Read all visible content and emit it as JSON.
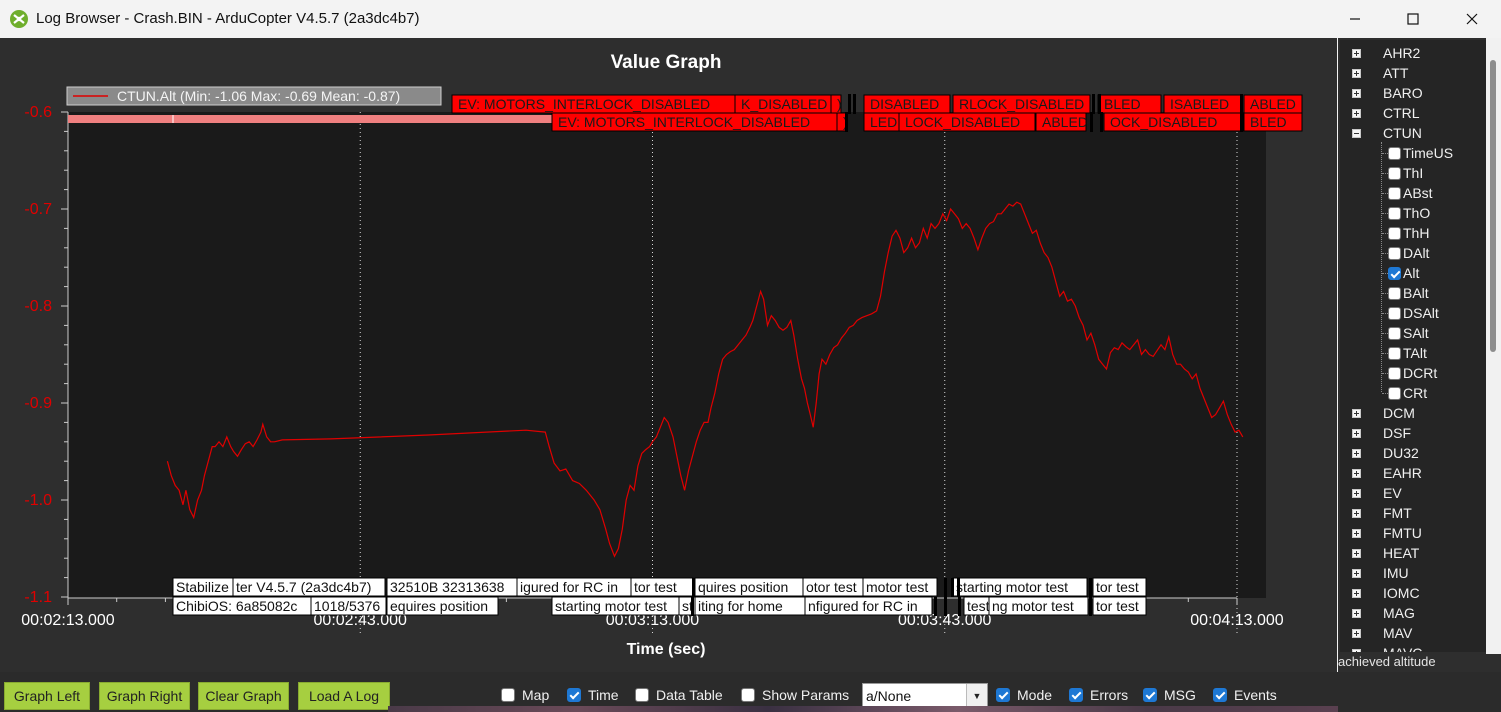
{
  "window": {
    "title": "Log Browser - Crash.BIN - ArduCopter V4.5.7 (2a3dc4b7)"
  },
  "chart_data": {
    "type": "line",
    "title": "Value Graph",
    "xlabel": "Time (sec)",
    "ylabel": "",
    "xlim": [
      133,
      253
    ],
    "ylim": [
      -1.1,
      -0.6
    ],
    "x_ticks": [
      {
        "v": 133,
        "label": "00:02:13.000"
      },
      {
        "v": 163,
        "label": "00:02:43.000"
      },
      {
        "v": 193,
        "label": "00:03:13.000"
      },
      {
        "v": 223,
        "label": "00:03:43.000"
      },
      {
        "v": 253,
        "label": "00:04:13.000"
      }
    ],
    "y_ticks": [
      {
        "v": -0.6,
        "label": "-0.6"
      },
      {
        "v": -0.7,
        "label": "-0.7"
      },
      {
        "v": -0.8,
        "label": "-0.8"
      },
      {
        "v": -0.9,
        "label": "-0.9"
      },
      {
        "v": -1.0,
        "label": "-1.0"
      },
      {
        "v": -1.1,
        "label": "-1.1"
      }
    ],
    "legend": {
      "label": "CTUN.Alt  (Min: -1.06 Max: -0.69 Mean: -0.87)",
      "placement": "top-left"
    },
    "grid": "x-dotted",
    "series": [
      {
        "name": "CTUN.Alt",
        "color": "#e00000",
        "points": [
          [
            143.2,
            -0.96
          ],
          [
            143.6,
            -0.975
          ],
          [
            144.0,
            -0.985
          ],
          [
            144.4,
            -0.99
          ],
          [
            144.8,
            -1.005
          ],
          [
            145.1,
            -0.99
          ],
          [
            145.5,
            -1.01
          ],
          [
            145.9,
            -1.018
          ],
          [
            146.3,
            -1.0
          ],
          [
            146.7,
            -0.99
          ],
          [
            147.0,
            -0.975
          ],
          [
            147.4,
            -0.96
          ],
          [
            147.8,
            -0.945
          ],
          [
            148.1,
            -0.945
          ],
          [
            148.5,
            -0.94
          ],
          [
            148.9,
            -0.945
          ],
          [
            149.3,
            -0.935
          ],
          [
            149.7,
            -0.945
          ],
          [
            150.0,
            -0.95
          ],
          [
            150.4,
            -0.955
          ],
          [
            150.8,
            -0.948
          ],
          [
            151.2,
            -0.942
          ],
          [
            151.6,
            -0.94
          ],
          [
            152.0,
            -0.945
          ],
          [
            152.4,
            -0.938
          ],
          [
            152.8,
            -0.93
          ],
          [
            153.0,
            -0.922
          ],
          [
            153.4,
            -0.935
          ],
          [
            153.8,
            -0.94
          ],
          [
            154.2,
            -0.94
          ],
          [
            155.0,
            -0.938
          ],
          [
            160.0,
            -0.937
          ],
          [
            170.0,
            -0.933
          ],
          [
            180.0,
            -0.928
          ],
          [
            182.0,
            -0.93
          ],
          [
            182.4,
            -0.945
          ],
          [
            182.9,
            -0.962
          ],
          [
            183.5,
            -0.97
          ],
          [
            184.1,
            -0.968
          ],
          [
            184.8,
            -0.98
          ],
          [
            185.5,
            -0.983
          ],
          [
            186.2,
            -0.99
          ],
          [
            187.0,
            -1.0
          ],
          [
            187.6,
            -1.01
          ],
          [
            188.2,
            -1.03
          ],
          [
            188.6,
            -1.045
          ],
          [
            189.1,
            -1.058
          ],
          [
            189.5,
            -1.05
          ],
          [
            189.9,
            -1.03
          ],
          [
            190.3,
            -1.0
          ],
          [
            190.7,
            -0.985
          ],
          [
            191.1,
            -0.99
          ],
          [
            191.5,
            -0.965
          ],
          [
            191.9,
            -0.952
          ],
          [
            192.3,
            -0.948
          ],
          [
            192.7,
            -0.945
          ],
          [
            193.0,
            -0.94
          ],
          [
            193.4,
            -0.935
          ],
          [
            193.8,
            -0.925
          ],
          [
            194.2,
            -0.915
          ],
          [
            194.6,
            -0.92
          ],
          [
            195.1,
            -0.935
          ],
          [
            195.5,
            -0.955
          ],
          [
            195.9,
            -0.975
          ],
          [
            196.3,
            -0.99
          ],
          [
            196.7,
            -0.97
          ],
          [
            197.1,
            -0.955
          ],
          [
            197.5,
            -0.94
          ],
          [
            197.9,
            -0.928
          ],
          [
            198.3,
            -0.92
          ],
          [
            198.7,
            -0.92
          ],
          [
            199.0,
            -0.905
          ],
          [
            199.4,
            -0.89
          ],
          [
            199.8,
            -0.87
          ],
          [
            200.2,
            -0.855
          ],
          [
            200.6,
            -0.85
          ],
          [
            201.0,
            -0.847
          ],
          [
            201.4,
            -0.845
          ],
          [
            201.8,
            -0.84
          ],
          [
            202.2,
            -0.835
          ],
          [
            202.6,
            -0.83
          ],
          [
            203.0,
            -0.822
          ],
          [
            203.3,
            -0.815
          ],
          [
            203.7,
            -0.8
          ],
          [
            204.1,
            -0.785
          ],
          [
            204.4,
            -0.793
          ],
          [
            204.8,
            -0.82
          ],
          [
            205.2,
            -0.81
          ],
          [
            205.6,
            -0.815
          ],
          [
            206.0,
            -0.822
          ],
          [
            206.4,
            -0.825
          ],
          [
            206.8,
            -0.822
          ],
          [
            207.2,
            -0.815
          ],
          [
            207.5,
            -0.83
          ],
          [
            207.9,
            -0.855
          ],
          [
            208.3,
            -0.875
          ],
          [
            208.6,
            -0.885
          ],
          [
            208.9,
            -0.9
          ],
          [
            209.2,
            -0.912
          ],
          [
            209.5,
            -0.925
          ],
          [
            209.8,
            -0.9
          ],
          [
            210.1,
            -0.87
          ],
          [
            210.4,
            -0.855
          ],
          [
            210.8,
            -0.86
          ],
          [
            211.2,
            -0.85
          ],
          [
            211.6,
            -0.843
          ],
          [
            212.0,
            -0.84
          ],
          [
            212.4,
            -0.833
          ],
          [
            212.8,
            -0.828
          ],
          [
            213.2,
            -0.822
          ],
          [
            213.6,
            -0.82
          ],
          [
            214.0,
            -0.815
          ],
          [
            214.5,
            -0.812
          ],
          [
            215.0,
            -0.81
          ],
          [
            215.5,
            -0.808
          ],
          [
            216.0,
            -0.805
          ],
          [
            216.4,
            -0.79
          ],
          [
            216.8,
            -0.765
          ],
          [
            217.2,
            -0.745
          ],
          [
            217.6,
            -0.728
          ],
          [
            218.0,
            -0.722
          ],
          [
            218.4,
            -0.73
          ],
          [
            218.8,
            -0.745
          ],
          [
            219.2,
            -0.74
          ],
          [
            219.6,
            -0.73
          ],
          [
            220.0,
            -0.74
          ],
          [
            220.4,
            -0.735
          ],
          [
            220.8,
            -0.72
          ],
          [
            221.2,
            -0.73
          ],
          [
            221.6,
            -0.715
          ],
          [
            222.0,
            -0.72
          ],
          [
            222.4,
            -0.715
          ],
          [
            222.8,
            -0.705
          ],
          [
            223.2,
            -0.712
          ],
          [
            223.6,
            -0.7
          ],
          [
            224.0,
            -0.705
          ],
          [
            224.4,
            -0.71
          ],
          [
            224.8,
            -0.72
          ],
          [
            225.2,
            -0.715
          ],
          [
            225.6,
            -0.72
          ],
          [
            226.0,
            -0.73
          ],
          [
            226.4,
            -0.742
          ],
          [
            226.8,
            -0.73
          ],
          [
            227.2,
            -0.72
          ],
          [
            227.6,
            -0.715
          ],
          [
            228.0,
            -0.713
          ],
          [
            228.4,
            -0.705
          ],
          [
            228.8,
            -0.705
          ],
          [
            229.2,
            -0.7
          ],
          [
            229.6,
            -0.695
          ],
          [
            230.0,
            -0.697
          ],
          [
            230.4,
            -0.693
          ],
          [
            230.8,
            -0.695
          ],
          [
            231.2,
            -0.705
          ],
          [
            231.6,
            -0.715
          ],
          [
            232.0,
            -0.725
          ],
          [
            232.4,
            -0.722
          ],
          [
            232.8,
            -0.735
          ],
          [
            233.2,
            -0.745
          ],
          [
            233.6,
            -0.75
          ],
          [
            234.0,
            -0.76
          ],
          [
            234.4,
            -0.775
          ],
          [
            234.8,
            -0.79
          ],
          [
            235.2,
            -0.785
          ],
          [
            235.6,
            -0.795
          ],
          [
            236.0,
            -0.793
          ],
          [
            236.4,
            -0.8
          ],
          [
            236.8,
            -0.812
          ],
          [
            237.2,
            -0.82
          ],
          [
            237.6,
            -0.835
          ],
          [
            238.0,
            -0.828
          ],
          [
            238.4,
            -0.84
          ],
          [
            238.8,
            -0.855
          ],
          [
            239.2,
            -0.86
          ],
          [
            239.6,
            -0.865
          ],
          [
            240.0,
            -0.848
          ],
          [
            240.4,
            -0.843
          ],
          [
            240.8,
            -0.845
          ],
          [
            241.2,
            -0.838
          ],
          [
            241.6,
            -0.842
          ],
          [
            242.0,
            -0.845
          ],
          [
            242.4,
            -0.84
          ],
          [
            242.8,
            -0.835
          ],
          [
            243.2,
            -0.85
          ],
          [
            243.6,
            -0.845
          ],
          [
            244.0,
            -0.85
          ],
          [
            244.4,
            -0.852
          ],
          [
            244.8,
            -0.846
          ],
          [
            245.2,
            -0.84
          ],
          [
            245.6,
            -0.845
          ],
          [
            246.0,
            -0.832
          ],
          [
            246.4,
            -0.85
          ],
          [
            246.8,
            -0.86
          ],
          [
            247.2,
            -0.86
          ],
          [
            247.6,
            -0.865
          ],
          [
            248.0,
            -0.868
          ],
          [
            248.4,
            -0.875
          ],
          [
            248.8,
            -0.87
          ],
          [
            249.2,
            -0.885
          ],
          [
            249.6,
            -0.895
          ],
          [
            250.0,
            -0.905
          ],
          [
            250.4,
            -0.915
          ],
          [
            250.8,
            -0.912
          ],
          [
            251.2,
            -0.905
          ],
          [
            251.6,
            -0.898
          ],
          [
            252.0,
            -0.912
          ],
          [
            252.4,
            -0.922
          ],
          [
            252.8,
            -0.93
          ],
          [
            253.2,
            -0.928
          ],
          [
            253.6,
            -0.935
          ]
        ]
      }
    ],
    "event_labels": [
      {
        "text": "EV: MOTORS_INTERLOCK_DISABLED",
        "lane": 1
      },
      {
        "text": "K_DISABLED",
        "lane": 1
      },
      {
        "text": ")",
        "lane": 1
      },
      {
        "text": "DISABLED",
        "lane": 1
      },
      {
        "text": "RLOCK_DISABLED",
        "lane": 1
      },
      {
        "text": "BLED",
        "lane": 1
      },
      {
        "text": "ISABLED",
        "lane": 1
      },
      {
        "text": "ABLED",
        "lane": 1
      },
      {
        "text": "EV: MOTORS_INTERLOCK_DISABLED",
        "lane": 2
      },
      {
        "text": ")",
        "lane": 2
      },
      {
        "text": "LED",
        "lane": 2
      },
      {
        "text": "LOCK_DISABLED",
        "lane": 2
      },
      {
        "text": "ABLED",
        "lane": 2
      },
      {
        "text": "OCK_DISABLED",
        "lane": 2
      },
      {
        "text": "BLED",
        "lane": 2
      }
    ],
    "msg_labels": [
      {
        "text": "Stabilize",
        "lane": 1
      },
      {
        "text": "ter V4.5.7 (2a3dc4b7)",
        "lane": 1
      },
      {
        "text": "32510B 32313638",
        "lane": 1
      },
      {
        "text": "igured for RC in",
        "lane": 1
      },
      {
        "text": "tor test",
        "lane": 1
      },
      {
        "text": "quires position",
        "lane": 1
      },
      {
        "text": "otor test",
        "lane": 1
      },
      {
        "text": "motor test",
        "lane": 1
      },
      {
        "text": "starting motor test",
        "lane": 1
      },
      {
        "text": "tor test",
        "lane": 1
      },
      {
        "text": "ChibiOS: 6a85082c",
        "lane": 2
      },
      {
        "text": "1018/5376",
        "lane": 2
      },
      {
        "text": "equires position",
        "lane": 2
      },
      {
        "text": "starting motor test",
        "lane": 2
      },
      {
        "text": "st",
        "lane": 2
      },
      {
        "text": "iting for home",
        "lane": 2
      },
      {
        "text": "nfigured for RC in",
        "lane": 2
      },
      {
        "text": "test",
        "lane": 2
      },
      {
        "text": "ng motor test",
        "lane": 2
      },
      {
        "text": "tor test",
        "lane": 2
      }
    ]
  },
  "tree": {
    "top_groups": [
      "AHR2",
      "ATT",
      "BARO",
      "CTRL"
    ],
    "expanded_group": "CTUN",
    "ctun_fields": [
      {
        "label": "TimeUS",
        "checked": false
      },
      {
        "label": "ThI",
        "checked": false
      },
      {
        "label": "ABst",
        "checked": false
      },
      {
        "label": "ThO",
        "checked": false
      },
      {
        "label": "ThH",
        "checked": false
      },
      {
        "label": "DAlt",
        "checked": false
      },
      {
        "label": "Alt",
        "checked": true
      },
      {
        "label": "BAlt",
        "checked": false
      },
      {
        "label": "DSAlt",
        "checked": false
      },
      {
        "label": "SAlt",
        "checked": false
      },
      {
        "label": "TAlt",
        "checked": false
      },
      {
        "label": "DCRt",
        "checked": false
      },
      {
        "label": "CRt",
        "checked": false
      }
    ],
    "bottom_groups": [
      "DCM",
      "DSF",
      "DU32",
      "EAHR",
      "EV",
      "FMT",
      "FMTU",
      "HEAT",
      "IMU",
      "IOMC",
      "MAG",
      "MAV",
      "MAVC"
    ]
  },
  "status_text": "achieved altitude",
  "buttons": {
    "graph_left": "Graph Left",
    "graph_right": "Graph Right",
    "clear_graph": "Clear Graph",
    "load_log": "Load A Log"
  },
  "options": [
    {
      "label": "Map",
      "checked": false
    },
    {
      "label": "Time",
      "checked": true
    },
    {
      "label": "Data Table",
      "checked": false
    },
    {
      "label": "Show Params",
      "checked": false
    }
  ],
  "mode_select": {
    "value": "a/None"
  },
  "options_right": [
    {
      "label": "Mode",
      "checked": true
    },
    {
      "label": "Errors",
      "checked": true
    },
    {
      "label": "MSG",
      "checked": true
    },
    {
      "label": "Events",
      "checked": true
    }
  ]
}
